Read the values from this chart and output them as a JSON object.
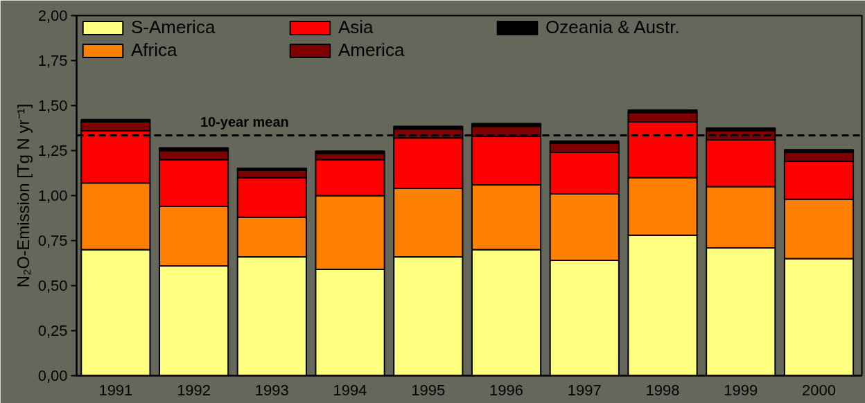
{
  "chart_data": {
    "type": "bar",
    "stacked": true,
    "ylabel": "N₂O-Emission [Tg N yr⁻¹]",
    "categories": [
      "1991",
      "1992",
      "1993",
      "1994",
      "1995",
      "1996",
      "1997",
      "1998",
      "1999",
      "2000"
    ],
    "series": [
      {
        "name": "S-America",
        "color": "#ffff80",
        "values": [
          0.7,
          0.61,
          0.66,
          0.59,
          0.66,
          0.7,
          0.64,
          0.78,
          0.71,
          0.65
        ]
      },
      {
        "name": "Africa",
        "color": "#ff8000",
        "values": [
          0.37,
          0.33,
          0.22,
          0.41,
          0.38,
          0.36,
          0.37,
          0.32,
          0.34,
          0.33
        ]
      },
      {
        "name": "Asia",
        "color": "#ff0000",
        "values": [
          0.29,
          0.26,
          0.22,
          0.2,
          0.28,
          0.27,
          0.23,
          0.31,
          0.26,
          0.21
        ]
      },
      {
        "name": "America",
        "color": "#800000",
        "values": [
          0.05,
          0.05,
          0.04,
          0.035,
          0.05,
          0.055,
          0.05,
          0.05,
          0.05,
          0.05
        ]
      },
      {
        "name": "Ozeania & Austr.",
        "color": "#000000",
        "values": [
          0.012,
          0.015,
          0.012,
          0.012,
          0.015,
          0.015,
          0.013,
          0.015,
          0.015,
          0.015
        ]
      }
    ],
    "ylim": [
      0,
      2
    ],
    "yticks": [
      {
        "value": 0,
        "label": "0,00"
      },
      {
        "value": 0.25,
        "label": "0,25"
      },
      {
        "value": 0.5,
        "label": "0,50"
      },
      {
        "value": 0.75,
        "label": "0,75"
      },
      {
        "value": 1,
        "label": "1,00"
      },
      {
        "value": 1.25,
        "label": "1,25"
      },
      {
        "value": 1.5,
        "label": "1,50"
      },
      {
        "value": 1.75,
        "label": "1,75"
      },
      {
        "value": 2,
        "label": "2,00"
      }
    ],
    "ref_lines": [
      {
        "axis": "y",
        "value": 1.335,
        "label": "10-year mean",
        "color": "#000000",
        "line_style": "dashed"
      }
    ],
    "grid": false,
    "legend": "top left"
  }
}
